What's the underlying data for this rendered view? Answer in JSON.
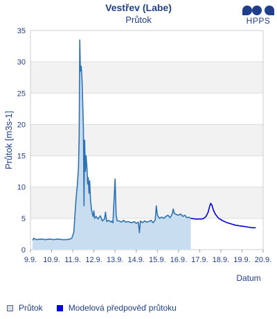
{
  "chart_data": {
    "type": "area",
    "title": "Vestřev (Labe)",
    "subtitle": "Průtok",
    "xlabel": "Datum",
    "ylabel": "Průtok [m3s-1]",
    "ylim": [
      0,
      35
    ],
    "xlim": [
      9,
      20
    ],
    "yticks": [
      0,
      5,
      10,
      15,
      20,
      25,
      30,
      35
    ],
    "xticks": [
      {
        "x": 9,
        "label": "9.9."
      },
      {
        "x": 10,
        "label": "10.9."
      },
      {
        "x": 11,
        "label": "11.9."
      },
      {
        "x": 12,
        "label": "12.9."
      },
      {
        "x": 13,
        "label": "13.9."
      },
      {
        "x": 14,
        "label": "14.9."
      },
      {
        "x": 15,
        "label": "15.9."
      },
      {
        "x": 16,
        "label": "16.9."
      },
      {
        "x": 17,
        "label": "17.9."
      },
      {
        "x": 18,
        "label": "18.9."
      },
      {
        "x": 19,
        "label": "19.9."
      },
      {
        "x": 20,
        "label": "20.9."
      }
    ],
    "grid": true,
    "legend": "bottom",
    "series": [
      {
        "name": "Průtok",
        "kind": "area",
        "color": "#2f72b0",
        "fill": "#c9ddf1",
        "points": [
          [
            9.1,
            1.5
          ],
          [
            9.15,
            1.8
          ],
          [
            9.3,
            1.6
          ],
          [
            9.5,
            1.7
          ],
          [
            9.7,
            1.6
          ],
          [
            9.9,
            1.7
          ],
          [
            10.1,
            1.6
          ],
          [
            10.3,
            1.7
          ],
          [
            10.5,
            1.6
          ],
          [
            10.7,
            1.6
          ],
          [
            10.85,
            1.7
          ],
          [
            10.95,
            1.8
          ],
          [
            11.05,
            2.8
          ],
          [
            11.15,
            8.0
          ],
          [
            11.22,
            10.5
          ],
          [
            11.27,
            13.0
          ],
          [
            11.3,
            18.0
          ],
          [
            11.33,
            33.5
          ],
          [
            11.36,
            28.5
          ],
          [
            11.4,
            29.3
          ],
          [
            11.44,
            27.0
          ],
          [
            11.48,
            22.0
          ],
          [
            11.5,
            19.5
          ],
          [
            11.53,
            7.0
          ],
          [
            11.56,
            17.5
          ],
          [
            11.6,
            12.5
          ],
          [
            11.63,
            15.0
          ],
          [
            11.67,
            13.0
          ],
          [
            11.7,
            10.5
          ],
          [
            11.73,
            11.5
          ],
          [
            11.77,
            9.0
          ],
          [
            11.8,
            11.0
          ],
          [
            11.84,
            8.0
          ],
          [
            11.88,
            6.5
          ],
          [
            11.92,
            5.8
          ],
          [
            11.96,
            5.3
          ],
          [
            12.0,
            6.2
          ],
          [
            12.03,
            5.0
          ],
          [
            12.1,
            5.3
          ],
          [
            12.2,
            4.9
          ],
          [
            12.3,
            5.4
          ],
          [
            12.4,
            4.6
          ],
          [
            12.5,
            4.9
          ],
          [
            12.55,
            6.0
          ],
          [
            12.6,
            4.5
          ],
          [
            12.7,
            4.7
          ],
          [
            12.8,
            4.4
          ],
          [
            12.85,
            4.6
          ],
          [
            12.9,
            4.3
          ],
          [
            12.95,
            8.0
          ],
          [
            13.0,
            11.3
          ],
          [
            13.05,
            5.5
          ],
          [
            13.1,
            4.6
          ],
          [
            13.2,
            4.6
          ],
          [
            13.3,
            4.4
          ],
          [
            13.4,
            4.7
          ],
          [
            13.5,
            4.4
          ],
          [
            13.6,
            4.5
          ],
          [
            13.7,
            4.4
          ],
          [
            13.8,
            4.3
          ],
          [
            13.9,
            4.5
          ],
          [
            14.0,
            4.2
          ],
          [
            14.1,
            4.4
          ],
          [
            14.15,
            2.7
          ],
          [
            14.2,
            4.6
          ],
          [
            14.3,
            4.3
          ],
          [
            14.4,
            4.6
          ],
          [
            14.5,
            4.4
          ],
          [
            14.6,
            4.5
          ],
          [
            14.7,
            4.7
          ],
          [
            14.8,
            4.3
          ],
          [
            14.9,
            4.8
          ],
          [
            14.95,
            7.0
          ],
          [
            15.0,
            5.5
          ],
          [
            15.1,
            5.0
          ],
          [
            15.2,
            5.2
          ],
          [
            15.3,
            5.0
          ],
          [
            15.4,
            5.3
          ],
          [
            15.5,
            5.5
          ],
          [
            15.6,
            5.1
          ],
          [
            15.7,
            5.7
          ],
          [
            15.75,
            6.5
          ],
          [
            15.8,
            5.8
          ],
          [
            15.9,
            5.6
          ],
          [
            16.0,
            5.5
          ],
          [
            16.1,
            5.7
          ],
          [
            16.2,
            5.3
          ],
          [
            16.3,
            5.5
          ],
          [
            16.4,
            5.1
          ],
          [
            16.5,
            5.2
          ],
          [
            16.58,
            5.0
          ]
        ]
      },
      {
        "name": "Modelová předpověď průtoku",
        "kind": "line",
        "color": "#0000e0",
        "points": [
          [
            16.58,
            5.0
          ],
          [
            16.8,
            4.9
          ],
          [
            17.0,
            4.9
          ],
          [
            17.1,
            4.9
          ],
          [
            17.2,
            5.0
          ],
          [
            17.3,
            5.3
          ],
          [
            17.4,
            6.0
          ],
          [
            17.47,
            6.9
          ],
          [
            17.52,
            7.4
          ],
          [
            17.58,
            7.1
          ],
          [
            17.65,
            6.3
          ],
          [
            17.75,
            5.6
          ],
          [
            17.9,
            5.0
          ],
          [
            18.1,
            4.6
          ],
          [
            18.3,
            4.3
          ],
          [
            18.5,
            4.1
          ],
          [
            18.7,
            3.9
          ],
          [
            18.9,
            3.8
          ],
          [
            19.1,
            3.7
          ],
          [
            19.3,
            3.6
          ],
          [
            19.5,
            3.5
          ],
          [
            19.65,
            3.5
          ]
        ]
      }
    ]
  },
  "logo": {
    "text": "HPPS",
    "color": "#1f3f8a"
  },
  "legend": {
    "observed_label": "Průtok",
    "forecast_label": "Modelová předpověď průtoku"
  }
}
